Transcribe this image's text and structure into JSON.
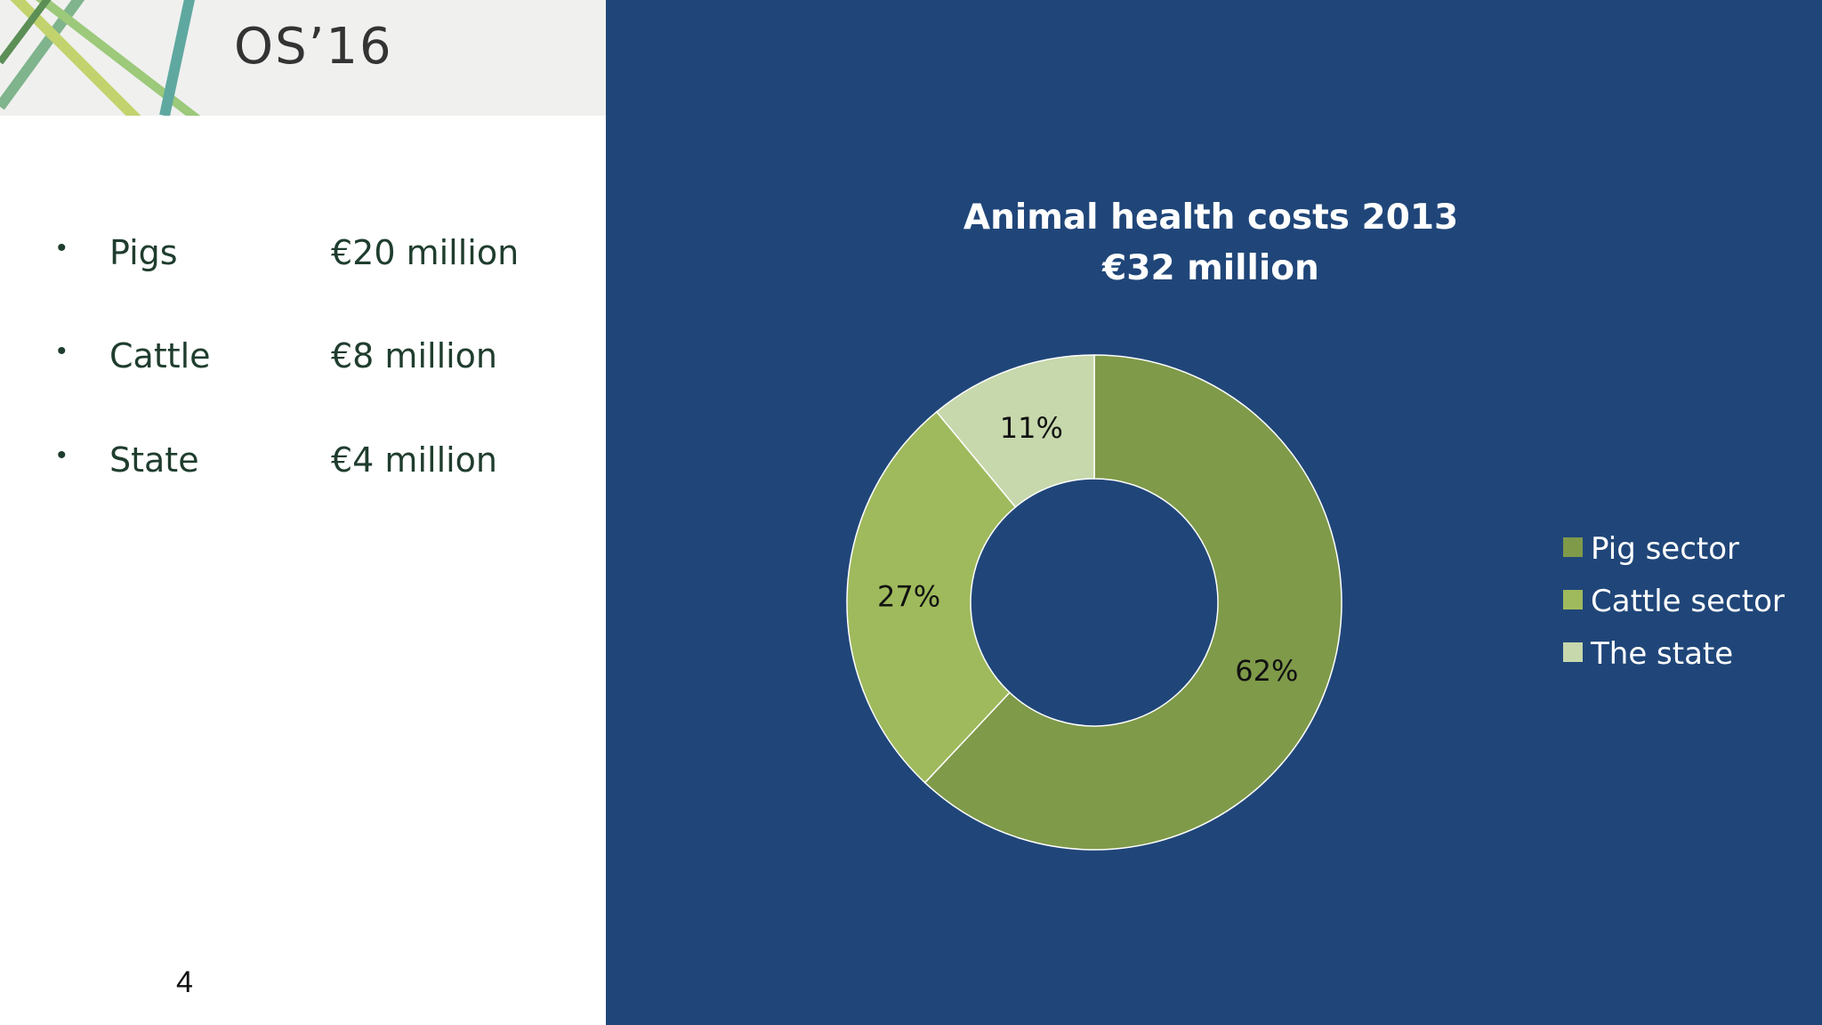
{
  "header": {
    "logo_text": "OS’16"
  },
  "bullets": [
    {
      "label": "Pigs",
      "value": "€20 million"
    },
    {
      "label": "Cattle",
      "value": "€8 million"
    },
    {
      "label": "State",
      "value": "€4 million"
    }
  ],
  "bullet_symbol": "•",
  "page_number": "4",
  "chart_data": {
    "type": "pie",
    "variant": "donut",
    "title": "Animal health costs 2013",
    "subtitle": "€32 million",
    "categories": [
      "Pig sector",
      "Cattle sector",
      "The state"
    ],
    "values": [
      62,
      27,
      11
    ],
    "value_labels": [
      "62%",
      "27%",
      "11%"
    ],
    "unit": "%",
    "legend_position": "right",
    "colors": [
      "#7f9a49",
      "#9fba5c",
      "#c7d8ac"
    ]
  },
  "colors": {
    "panel_background": "#204679",
    "text_dark_green": "#1f3d2e"
  }
}
